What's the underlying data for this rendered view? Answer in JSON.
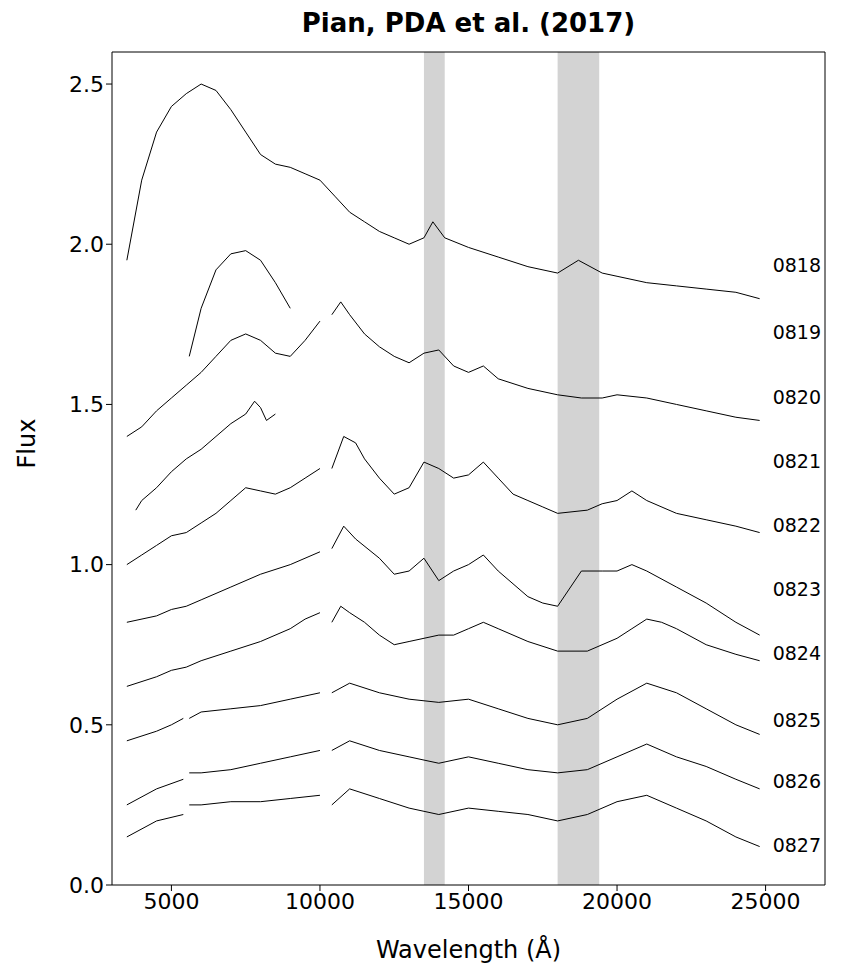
{
  "chart_data": {
    "type": "line",
    "title": "Pian, PDA et al. (2017)",
    "x_label": "Wavelength (Å)",
    "y_label": "Flux",
    "xlim": [
      3000,
      27000
    ],
    "xticks": [
      5000,
      10000,
      15000,
      20000,
      25000
    ],
    "ylim": [
      0,
      2.6
    ],
    "yticks": [
      {
        "value": 0,
        "label": "0.0"
      },
      {
        "value": 0.5,
        "label": "0.5"
      },
      {
        "value": 1,
        "label": "1.0"
      },
      {
        "value": 1.5,
        "label": "1.5"
      },
      {
        "value": 2,
        "label": "2.0"
      },
      {
        "value": 2.5,
        "label": "2.5"
      }
    ],
    "grid": false,
    "line_style": "solid",
    "bands": [
      [
        13500,
        14200
      ],
      [
        18000,
        19400
      ]
    ],
    "series": [
      {
        "name": "0818",
        "color": "#000000",
        "label_y": 1.93,
        "x": [
          3500,
          4000,
          4500,
          5000,
          5500,
          6000,
          6500,
          7000,
          7500,
          8000,
          8500,
          9000,
          9500,
          10000,
          10500,
          11000,
          11500,
          12000,
          12500,
          13000,
          13500,
          13800,
          14200,
          15000,
          16000,
          17000,
          18000,
          18700,
          19500,
          20000,
          21000,
          22000,
          23000,
          24000,
          24800
        ],
        "values": [
          1.95,
          2.2,
          2.35,
          2.43,
          2.47,
          2.5,
          2.48,
          2.42,
          2.35,
          2.28,
          2.25,
          2.24,
          2.22,
          2.2,
          2.15,
          2.1,
          2.07,
          2.04,
          2.02,
          2.0,
          2.02,
          2.07,
          2.02,
          1.99,
          1.96,
          1.93,
          1.91,
          1.95,
          1.91,
          1.9,
          1.88,
          1.87,
          1.86,
          1.85,
          1.83
        ]
      },
      {
        "name": "0819",
        "color": "#000000",
        "label_y": 1.72,
        "x": [
          5600,
          6000,
          6500,
          7000,
          7500,
          8000,
          8500,
          9000
        ],
        "values": [
          1.65,
          1.8,
          1.92,
          1.97,
          1.98,
          1.95,
          1.88,
          1.8
        ]
      },
      {
        "name": "0820",
        "color": "#000000",
        "label_y": 1.52,
        "x": [
          3500,
          4000,
          4500,
          5000,
          5500,
          6000,
          6500,
          7000,
          7500,
          8000,
          8500,
          9000,
          9500,
          10000,
          10150,
          10400,
          10700,
          11000,
          11500,
          12000,
          12500,
          13000,
          13500,
          14000,
          14500,
          15000,
          15500,
          16000,
          17000,
          18000,
          18800,
          19500,
          20000,
          21000,
          22000,
          23000,
          24000,
          24800
        ],
        "values": [
          1.4,
          1.43,
          1.48,
          1.52,
          1.56,
          1.6,
          1.65,
          1.7,
          1.72,
          1.7,
          1.66,
          1.65,
          1.7,
          1.76,
          null,
          1.78,
          1.82,
          1.78,
          1.72,
          1.68,
          1.65,
          1.63,
          1.66,
          1.67,
          1.62,
          1.6,
          1.62,
          1.58,
          1.55,
          1.53,
          1.52,
          1.52,
          1.53,
          1.52,
          1.5,
          1.48,
          1.46,
          1.45
        ]
      },
      {
        "name": "0821",
        "color": "#000000",
        "label_y": 1.32,
        "x": [
          3800,
          4000,
          4500,
          5000,
          5500,
          6000,
          6500,
          7000,
          7500,
          7800,
          8000,
          8200,
          8500
        ],
        "values": [
          1.17,
          1.2,
          1.24,
          1.29,
          1.33,
          1.36,
          1.4,
          1.44,
          1.47,
          1.51,
          1.49,
          1.45,
          1.47
        ]
      },
      {
        "name": "0822",
        "color": "#000000",
        "label_y": 1.12,
        "x": [
          3500,
          4000,
          4500,
          5000,
          5500,
          6000,
          6500,
          7000,
          7500,
          8000,
          8500,
          9000,
          9500,
          10000,
          10150,
          10400,
          10800,
          11200,
          11500,
          12000,
          12500,
          13000,
          13500,
          14000,
          14500,
          15000,
          15500,
          16000,
          16500,
          17000,
          17500,
          18000,
          19000,
          19500,
          20000,
          20500,
          21000,
          22000,
          23000,
          24000,
          24800
        ],
        "values": [
          1.0,
          1.03,
          1.06,
          1.09,
          1.1,
          1.13,
          1.16,
          1.2,
          1.24,
          1.23,
          1.22,
          1.24,
          1.27,
          1.3,
          null,
          1.3,
          1.4,
          1.38,
          1.33,
          1.27,
          1.22,
          1.24,
          1.32,
          1.3,
          1.27,
          1.28,
          1.32,
          1.27,
          1.22,
          1.2,
          1.18,
          1.16,
          1.17,
          1.19,
          1.2,
          1.23,
          1.2,
          1.16,
          1.14,
          1.12,
          1.1
        ]
      },
      {
        "name": "0823",
        "color": "#000000",
        "label_y": 0.92,
        "x": [
          3500,
          4500,
          5000,
          5500,
          6000,
          7000,
          8000,
          9000,
          10000,
          10150,
          10400,
          10800,
          11200,
          12000,
          12500,
          13000,
          13500,
          14000,
          14500,
          15000,
          15500,
          16000,
          17000,
          17500,
          18000,
          18800,
          19500,
          20000,
          20500,
          21000,
          22000,
          23000,
          24000,
          24800
        ],
        "values": [
          0.82,
          0.84,
          0.86,
          0.87,
          0.89,
          0.93,
          0.97,
          1.0,
          1.04,
          null,
          1.05,
          1.12,
          1.08,
          1.02,
          0.97,
          0.98,
          1.02,
          0.95,
          0.98,
          1.0,
          1.03,
          0.98,
          0.9,
          0.88,
          0.87,
          0.98,
          0.98,
          0.98,
          1.0,
          0.98,
          0.93,
          0.88,
          0.82,
          0.78
        ]
      },
      {
        "name": "0824",
        "color": "#000000",
        "label_y": 0.72,
        "x": [
          3500,
          4500,
          5000,
          5500,
          6000,
          7000,
          8000,
          9000,
          9500,
          10000,
          10150,
          10400,
          10700,
          11000,
          11500,
          12000,
          12500,
          13000,
          14000,
          14500,
          15000,
          15500,
          16000,
          17000,
          18000,
          19000,
          20000,
          20500,
          21000,
          21500,
          22000,
          23000,
          24000,
          24800
        ],
        "values": [
          0.62,
          0.65,
          0.67,
          0.68,
          0.7,
          0.73,
          0.76,
          0.8,
          0.83,
          0.85,
          null,
          0.82,
          0.87,
          0.85,
          0.82,
          0.78,
          0.75,
          0.76,
          0.78,
          0.78,
          0.8,
          0.82,
          0.8,
          0.76,
          0.73,
          0.73,
          0.77,
          0.8,
          0.83,
          0.82,
          0.8,
          0.75,
          0.72,
          0.7
        ]
      },
      {
        "name": "0825",
        "color": "#000000",
        "label_y": 0.51,
        "x": [
          3500,
          4500,
          5000,
          5400,
          5500,
          5600,
          6000,
          7000,
          8000,
          9000,
          10000,
          10150,
          10400,
          11000,
          12000,
          13000,
          14000,
          15000,
          16000,
          17000,
          18000,
          19000,
          20000,
          21000,
          22000,
          23000,
          24000,
          24800
        ],
        "values": [
          0.45,
          0.48,
          0.5,
          0.52,
          null,
          0.52,
          0.54,
          0.55,
          0.56,
          0.58,
          0.6,
          null,
          0.6,
          0.63,
          0.6,
          0.58,
          0.57,
          0.58,
          0.55,
          0.52,
          0.5,
          0.52,
          0.58,
          0.63,
          0.6,
          0.55,
          0.5,
          0.47
        ]
      },
      {
        "name": "0826",
        "color": "#000000",
        "label_y": 0.32,
        "x": [
          3500,
          4500,
          5400,
          5500,
          5600,
          6000,
          7000,
          8000,
          9000,
          10000,
          10150,
          10400,
          11000,
          12000,
          13000,
          14000,
          15000,
          16000,
          17000,
          18000,
          19000,
          20000,
          21000,
          22000,
          23000,
          24000,
          24800
        ],
        "values": [
          0.25,
          0.3,
          0.33,
          null,
          0.35,
          0.35,
          0.36,
          0.38,
          0.4,
          0.42,
          null,
          0.42,
          0.45,
          0.42,
          0.4,
          0.38,
          0.4,
          0.38,
          0.36,
          0.35,
          0.36,
          0.4,
          0.44,
          0.4,
          0.37,
          0.33,
          0.3
        ]
      },
      {
        "name": "0827",
        "color": "#000000",
        "label_y": 0.12,
        "x": [
          3500,
          4500,
          5400,
          5500,
          5600,
          6000,
          7000,
          8000,
          9000,
          10000,
          10150,
          10400,
          11000,
          12000,
          13000,
          14000,
          15000,
          16000,
          17000,
          18000,
          19000,
          20000,
          21000,
          22000,
          23000,
          24000,
          24800
        ],
        "values": [
          0.15,
          0.2,
          0.22,
          null,
          0.25,
          0.25,
          0.26,
          0.26,
          0.27,
          0.28,
          null,
          0.25,
          0.3,
          0.27,
          0.24,
          0.22,
          0.24,
          0.23,
          0.22,
          0.2,
          0.22,
          0.26,
          0.28,
          0.24,
          0.2,
          0.15,
          0.12
        ]
      }
    ]
  }
}
